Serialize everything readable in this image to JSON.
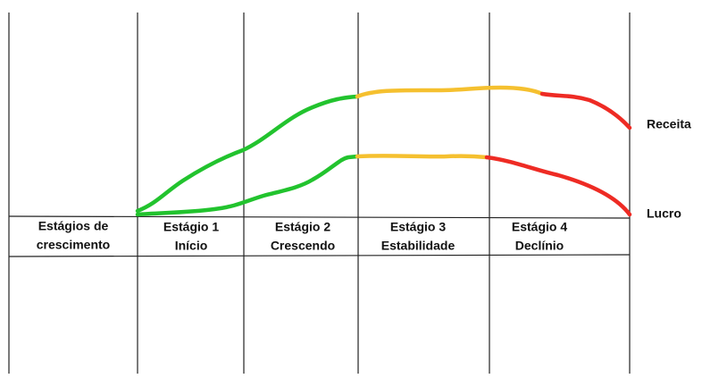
{
  "stub": {
    "lines": [
      "Estágios de",
      "crescimento"
    ]
  },
  "stages": [
    {
      "title": "Estágio 1",
      "subtitle": "Início"
    },
    {
      "title": "Estágio 2",
      "subtitle": "Crescendo"
    },
    {
      "title": "Estágio 3",
      "subtitle": "Estabilidade"
    },
    {
      "title": "Estágio 4",
      "subtitle": "Declínio"
    }
  ],
  "curves": {
    "revenue": "Receita",
    "profit": "Lucro"
  }
}
